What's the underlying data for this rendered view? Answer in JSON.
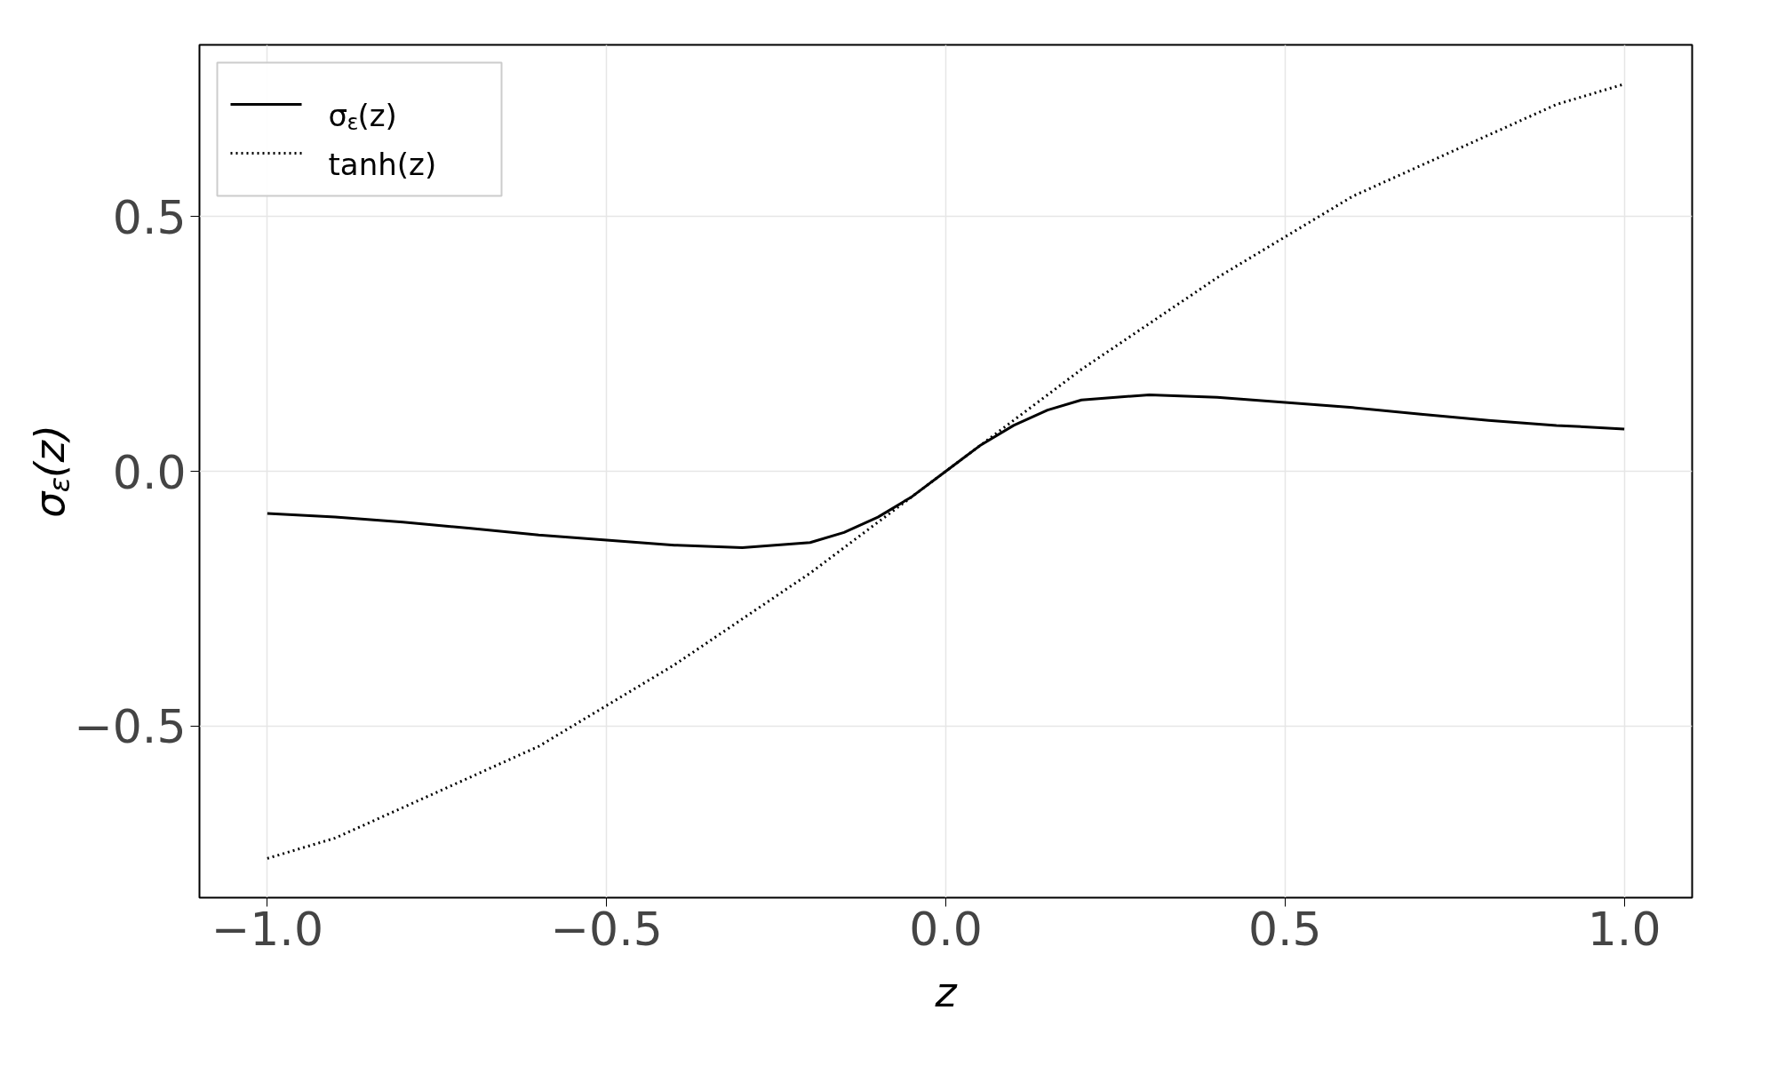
{
  "chart_data": {
    "type": "line",
    "xlabel": "z",
    "ylabel": "σ$_{ε}$(z)",
    "xlim": [
      -1.1,
      1.1
    ],
    "ylim": [
      -0.837,
      0.837
    ],
    "xticks": [
      {
        "value": -1.0,
        "label": "−1.0"
      },
      {
        "value": -0.5,
        "label": "−0.5"
      },
      {
        "value": 0.0,
        "label": "0.0"
      },
      {
        "value": 0.5,
        "label": "0.5"
      },
      {
        "value": 1.0,
        "label": "1.0"
      }
    ],
    "yticks": [
      {
        "value": -0.5,
        "label": "−0.5"
      },
      {
        "value": 0.0,
        "label": "0.0"
      },
      {
        "value": 0.5,
        "label": "0.5"
      }
    ],
    "grid": true,
    "legend": "top left",
    "x": [
      -1.0,
      -0.9,
      -0.8,
      -0.7,
      -0.6,
      -0.5,
      -0.4,
      -0.3,
      -0.2,
      -0.15,
      -0.1,
      -0.05,
      0.0,
      0.05,
      0.1,
      0.15,
      0.2,
      0.3,
      0.4,
      0.5,
      0.6,
      0.7,
      0.8,
      0.9,
      1.0
    ],
    "series": [
      {
        "name": "σ$_{ε}$(z)",
        "color": "#000000",
        "line_style": "solid",
        "values": [
          -0.083,
          -0.09,
          -0.1,
          -0.112,
          -0.125,
          -0.135,
          -0.145,
          -0.15,
          -0.14,
          -0.12,
          -0.09,
          -0.05,
          0.0,
          0.05,
          0.09,
          0.12,
          0.14,
          0.15,
          0.145,
          0.135,
          0.125,
          0.112,
          0.1,
          0.09,
          0.083
        ]
      },
      {
        "name": "tanh(z)",
        "color": "#000000",
        "line_style": "dotted",
        "values": [
          -0.76,
          -0.72,
          -0.66,
          -0.6,
          -0.54,
          -0.46,
          -0.38,
          -0.29,
          -0.2,
          -0.15,
          -0.1,
          -0.05,
          0.0,
          0.05,
          0.1,
          0.15,
          0.2,
          0.29,
          0.38,
          0.46,
          0.54,
          0.6,
          0.66,
          0.72,
          0.76
        ]
      }
    ]
  }
}
